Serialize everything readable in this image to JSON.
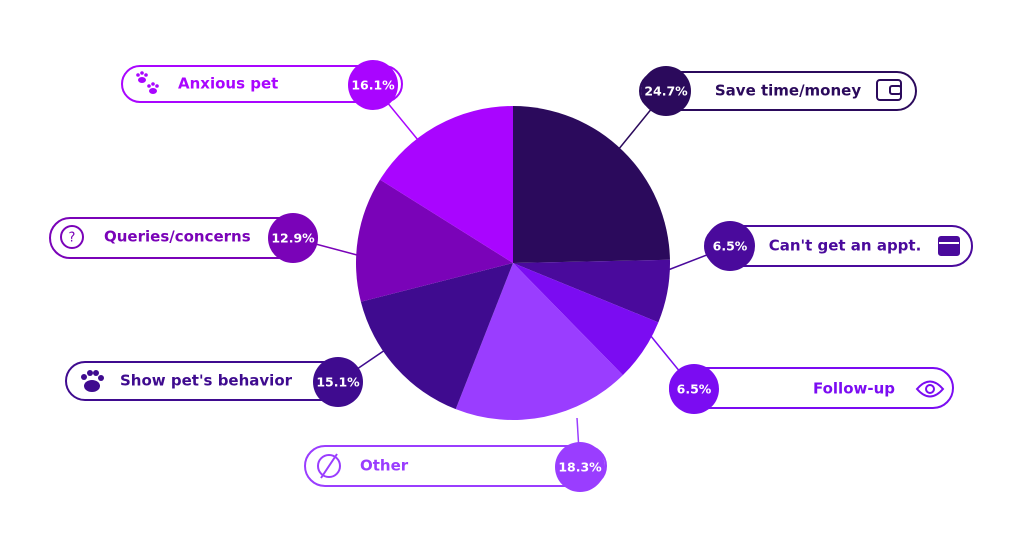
{
  "chart_data": {
    "type": "pie",
    "categories": [
      "Save time/money",
      "Can't get an appt.",
      "Follow-up",
      "Other",
      "Show pet's behavior",
      "Queries/concerns",
      "Anxious pet"
    ],
    "values": [
      24.7,
      6.5,
      6.5,
      18.3,
      15.1,
      12.9,
      16.1
    ],
    "value_labels": [
      "24.7%",
      "6.5%",
      "6.5%",
      "18.3%",
      "15.1%",
      "12.9%",
      "16.1%"
    ],
    "colors": [
      "#2b0a5c",
      "#4a0a9c",
      "#7b0cf2",
      "#9a3dff",
      "#3f0b8f",
      "#7a03b8",
      "#a905ff"
    ]
  }
}
